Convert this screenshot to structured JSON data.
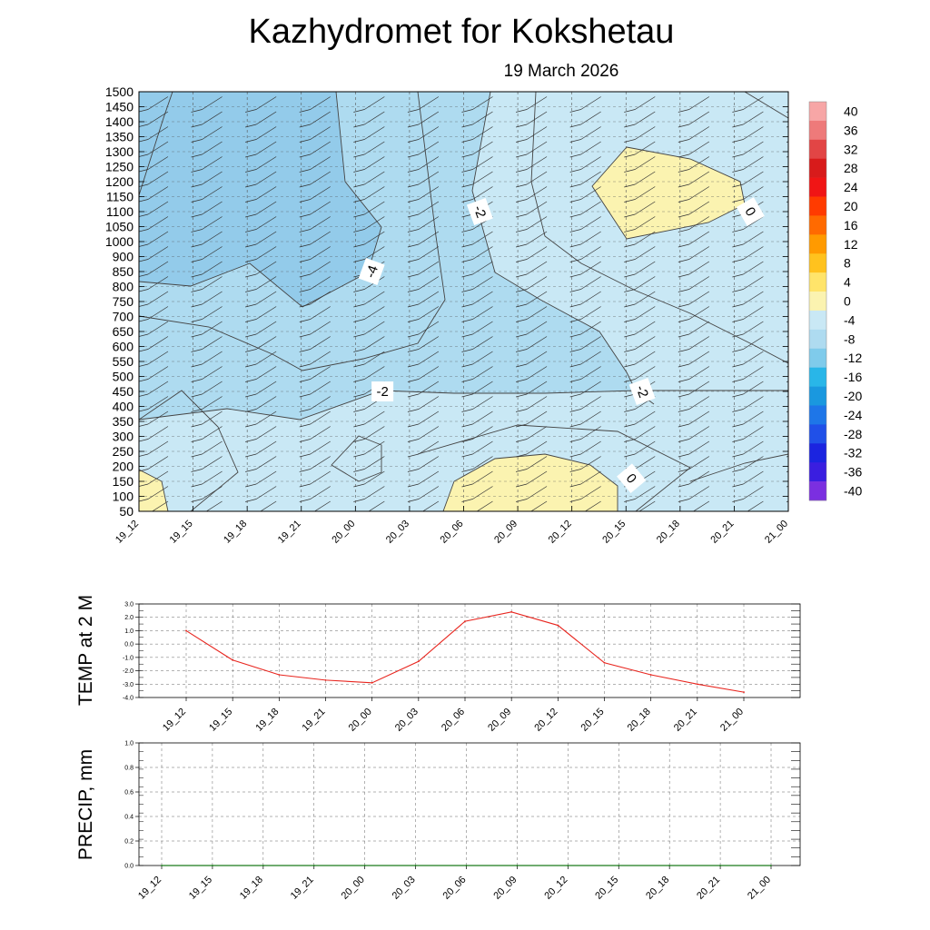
{
  "title": "Kazhydromet  for Kokshetau",
  "subtitle": "19 March 2026",
  "times": [
    "19_12",
    "19_15",
    "19_18",
    "19_21",
    "20_00",
    "20_03",
    "20_06",
    "20_09",
    "20_12",
    "20_15",
    "20_18",
    "20_21",
    "21_00"
  ],
  "colors": {
    "warm": "#FBF3B0",
    "cool_light": "#C9E8F5",
    "cool_mid": "#AEDBF0",
    "cool_dark": "#93CBEA",
    "temp_line": "#E8251E",
    "precip_line": "#1A7A1A",
    "contour": "#444444"
  },
  "chart_data": [
    {
      "type": "heatmap",
      "name": "cross-section",
      "title": "Kazhydromet  for Kokshetau",
      "subtitle": "19 March 2026",
      "x_labels": [
        "19_12",
        "19_15",
        "19_18",
        "19_21",
        "20_00",
        "20_03",
        "20_06",
        "20_09",
        "20_12",
        "20_15",
        "20_18",
        "20_21",
        "21_00"
      ],
      "y_levels": [
        1500,
        1450,
        1400,
        1350,
        1300,
        1250,
        1200,
        1150,
        1100,
        1050,
        1000,
        900,
        850,
        800,
        750,
        700,
        650,
        600,
        550,
        500,
        450,
        400,
        350,
        300,
        250,
        200,
        150,
        100,
        50
      ],
      "colorbar": {
        "labels": [
          "40",
          "36",
          "32",
          "28",
          "24",
          "20",
          "16",
          "12",
          "8",
          "4",
          "0",
          "-4",
          "-8",
          "-12",
          "-16",
          "-20",
          "-24",
          "-28",
          "-32",
          "-36",
          "-40"
        ],
        "colors": [
          "#F7A6A6",
          "#EE7A7A",
          "#E24545",
          "#D81B1B",
          "#F01515",
          "#FF3B00",
          "#FF6A00",
          "#FF9A00",
          "#FFC21E",
          "#FFE46A",
          "#FBF3B0",
          "#C9E8F5",
          "#AEDBF0",
          "#7FCBEB",
          "#29B6E8",
          "#1A98DF",
          "#1E76E8",
          "#2050E8",
          "#1B24E0",
          "#3A1EE0",
          "#7B2FE0"
        ]
      },
      "contour_labels": [
        {
          "text": "-2",
          "t": 6.3,
          "level": 1100,
          "angle": 70
        },
        {
          "text": "0",
          "t": 11.3,
          "level": 1100,
          "angle": 60
        },
        {
          "text": "-4",
          "t": 4.3,
          "level": 850,
          "angle": -70
        },
        {
          "text": "-2",
          "t": 4.5,
          "level": 450,
          "angle": 0
        },
        {
          "text": "-2",
          "t": 9.3,
          "level": 450,
          "angle": 70
        },
        {
          "text": "0",
          "t": 9.1,
          "level": 160,
          "angle": 50
        }
      ]
    },
    {
      "type": "line",
      "name": "temperature",
      "ylabel": "TEMP at 2 M",
      "x": [
        "19_12",
        "19_15",
        "19_18",
        "19_21",
        "20_00",
        "20_03",
        "20_06",
        "20_09",
        "20_12",
        "20_15",
        "20_18",
        "20_21",
        "21_00"
      ],
      "y": [
        1.0,
        -1.2,
        -2.3,
        -2.7,
        -2.9,
        -1.3,
        1.7,
        2.4,
        1.4,
        -1.4,
        -2.3,
        -3.0,
        -3.6
      ],
      "ylim": [
        -4.0,
        3.0
      ],
      "y_ticks": [
        "3.0",
        "2.0",
        "1.0",
        "0.0",
        "-1.0",
        "-2.0",
        "-3.0",
        "-4.0"
      ]
    },
    {
      "type": "line",
      "name": "precipitation",
      "ylabel": "PRECIP, mm",
      "x": [
        "19_12",
        "19_15",
        "19_18",
        "19_21",
        "20_00",
        "20_03",
        "20_06",
        "20_09",
        "20_12",
        "20_15",
        "20_18",
        "20_21",
        "21_00"
      ],
      "y": [
        0,
        0,
        0,
        0,
        0,
        0,
        0,
        0,
        0,
        0,
        0,
        0,
        0
      ],
      "ylim": [
        0.0,
        1.0
      ],
      "y_ticks": [
        "1.0",
        "0.8",
        "0.6",
        "0.4",
        "0.2",
        "0.0"
      ]
    }
  ]
}
